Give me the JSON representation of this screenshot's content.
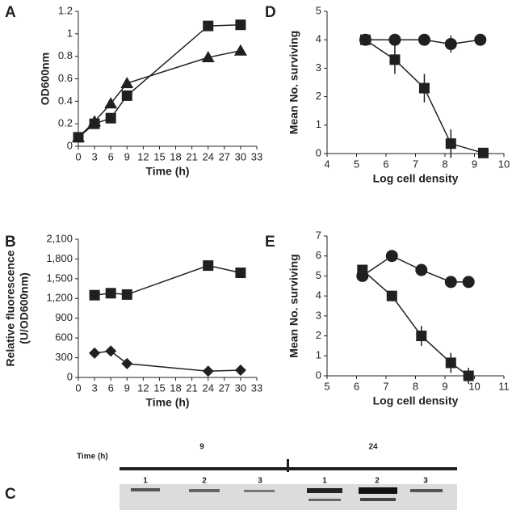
{
  "panel_labels": [
    "A",
    "B",
    "C",
    "D",
    "E"
  ],
  "chart_data": [
    {
      "type": "line",
      "xlabel": "Time (h)",
      "ylabel": "OD600nm",
      "xlim": [
        0,
        33
      ],
      "xticks": [
        0,
        3,
        6,
        9,
        12,
        15,
        18,
        21,
        24,
        27,
        30,
        33
      ],
      "ylim": [
        0,
        1.2
      ],
      "yticks": [
        0,
        0.2,
        0.4,
        0.6,
        0.8,
        1,
        1.2
      ],
      "series": [
        {
          "color": "#231f20",
          "marker": "square",
          "x": [
            0,
            3,
            6,
            9,
            24,
            30
          ],
          "values": [
            0.08,
            0.2,
            0.25,
            0.45,
            1.07,
            1.08
          ]
        },
        {
          "color": "#231f20",
          "marker": "triangle",
          "x": [
            0,
            3,
            6,
            9,
            24,
            30
          ],
          "values": [
            0.08,
            0.22,
            0.38,
            0.56,
            0.79,
            0.85
          ]
        }
      ]
    },
    {
      "type": "line",
      "xlabel": "Time (h)",
      "ylabel": [
        "Relative fluorescence",
        "(U/OD600nm)"
      ],
      "xlim": [
        0,
        33
      ],
      "xticks": [
        0,
        3,
        6,
        9,
        12,
        15,
        18,
        21,
        24,
        27,
        30,
        33
      ],
      "ylim": [
        0,
        2100
      ],
      "yticks": [
        0,
        300,
        600,
        900,
        {
          "value": 1200,
          "label": "1,200"
        },
        {
          "value": 1500,
          "label": "1,500"
        },
        {
          "value": 1800,
          "label": "1,800"
        },
        {
          "value": 2100,
          "label": "2,100"
        }
      ],
      "series": [
        {
          "color": "#231f20",
          "marker": "square",
          "x": [
            3,
            6,
            9,
            24,
            30
          ],
          "values": [
            1250,
            1280,
            1260,
            1700,
            1590
          ]
        },
        {
          "color": "#231f20",
          "marker": "diamond",
          "x": [
            3,
            6,
            9,
            24,
            30
          ],
          "values": [
            370,
            400,
            210,
            95,
            110
          ]
        }
      ]
    },
    {
      "type": "line",
      "xlabel": "Log cell density",
      "ylabel": "Mean No. surviving",
      "xlim": [
        4,
        10
      ],
      "xticks": [
        4,
        5,
        6,
        7,
        8,
        9,
        10
      ],
      "ylim": [
        0,
        5
      ],
      "yticks": [
        0,
        1,
        2,
        3,
        4,
        5
      ],
      "series": [
        {
          "color": "#231f20",
          "marker": "circle",
          "x": [
            5.3,
            6.3,
            7.3,
            8.2,
            9.2
          ],
          "values": [
            4,
            4,
            4,
            3.85,
            4
          ],
          "errors": [
            0.05,
            0.05,
            0.05,
            0.3,
            0.05
          ]
        },
        {
          "color": "#231f20",
          "marker": "square",
          "x": [
            5.3,
            6.3,
            7.3,
            8.2,
            9.3
          ],
          "values": [
            4,
            3.3,
            2.3,
            0.35,
            0.02
          ],
          "errors": [
            0.15,
            0.5,
            0.5,
            0.5,
            0.1
          ]
        }
      ]
    },
    {
      "type": "line",
      "xlabel": "Log cell density",
      "ylabel": "Mean No. surviving",
      "xlim": [
        5,
        11
      ],
      "xticks": [
        5,
        6,
        7,
        8,
        9,
        10,
        11
      ],
      "ylim": [
        0,
        7
      ],
      "yticks": [
        0,
        1,
        2,
        3,
        4,
        5,
        6,
        7
      ],
      "series": [
        {
          "color": "#231f20",
          "marker": "circle",
          "x": [
            6.2,
            7.2,
            8.2,
            9.2,
            9.8
          ],
          "values": [
            5,
            6,
            5.3,
            4.7,
            4.7
          ]
        },
        {
          "color": "#231f20",
          "marker": "square",
          "x": [
            6.2,
            7.2,
            8.2,
            9.2,
            9.8
          ],
          "values": [
            5.3,
            4,
            2,
            0.65,
            0
          ],
          "errors": [
            0.15,
            0.2,
            0.5,
            0.5,
            0.4
          ]
        }
      ]
    }
  ],
  "gel": {
    "label": "Time (h)",
    "times": [
      "9",
      "24"
    ],
    "lanes": [
      "1",
      "2",
      "3",
      "1",
      "2",
      "3"
    ]
  }
}
